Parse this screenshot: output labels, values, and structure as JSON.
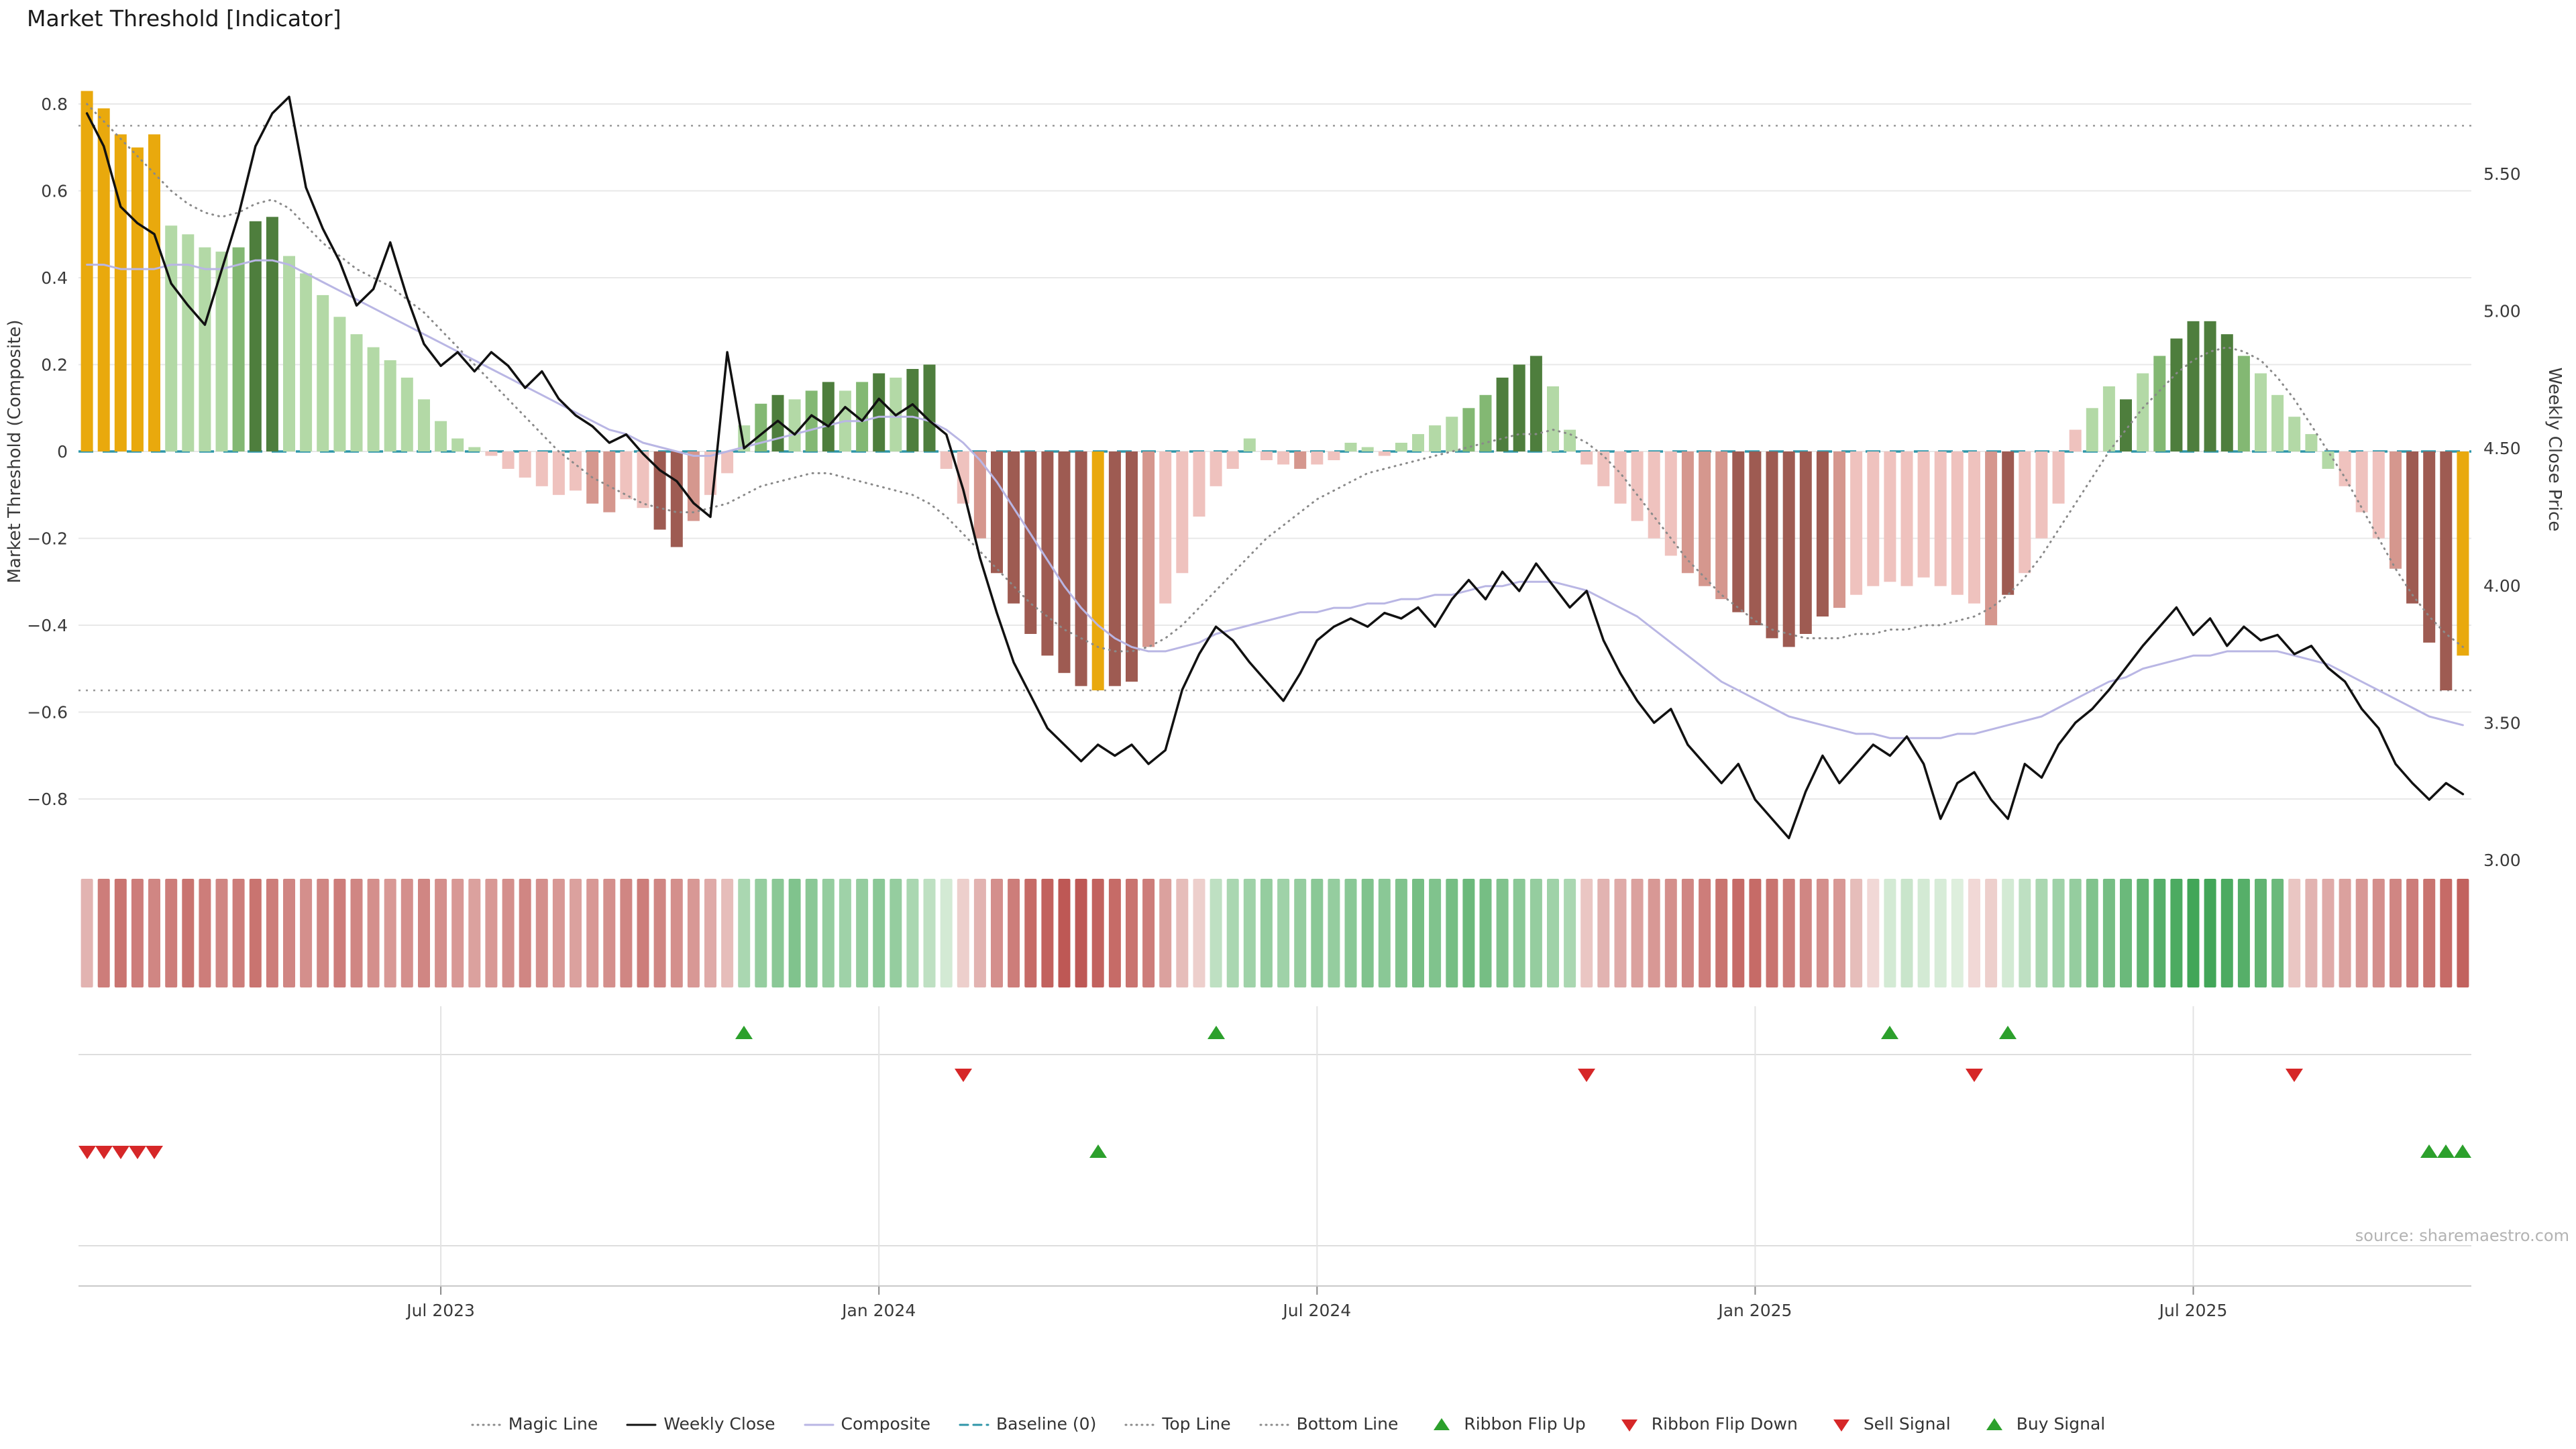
{
  "title": "Market Threshold [Indicator]",
  "source": "source: sharemaestro.com",
  "axes": {
    "left": {
      "title": "Market Threshold (Composite)",
      "tick_values": [
        0.8,
        0.6,
        0.4,
        0.2,
        0,
        -0.2,
        -0.4,
        -0.6,
        -0.8
      ],
      "tick_labels": [
        "0.8",
        "0.6",
        "0.4",
        "0.2",
        "0",
        "−0.2",
        "−0.4",
        "−0.6",
        "−0.8"
      ]
    },
    "right": {
      "title": "Weekly Close Price",
      "tick_values": [
        5.5,
        5.0,
        4.5,
        4.0,
        3.5,
        3.0
      ],
      "tick_labels": [
        "5.50",
        "5.00",
        "4.50",
        "4.00",
        "3.50",
        "3.00"
      ]
    },
    "x": {
      "tick_labels": [
        "Jul 2023",
        "Jan 2024",
        "Jul 2024",
        "Jan 2025",
        "Jul 2025"
      ],
      "tick_weeks": [
        21,
        47,
        73,
        99,
        125
      ]
    }
  },
  "chart_data": {
    "type": "bar",
    "subtype": "combo-bar-line-heatmap",
    "n_weeks": 142,
    "x_range": [
      "Feb 2023",
      "Nov 2025"
    ],
    "ylim_left": [
      -0.94,
      0.89
    ],
    "ylim_right": [
      3.0,
      5.9
    ],
    "bars": {
      "name": "Market Threshold (Composite)",
      "values": [
        0.83,
        0.79,
        0.73,
        0.7,
        0.73,
        0.52,
        0.5,
        0.47,
        0.46,
        0.47,
        0.53,
        0.54,
        0.45,
        0.41,
        0.36,
        0.31,
        0.27,
        0.24,
        0.21,
        0.17,
        0.12,
        0.07,
        0.03,
        0.01,
        -0.01,
        -0.04,
        -0.06,
        -0.08,
        -0.1,
        -0.09,
        -0.12,
        -0.14,
        -0.11,
        -0.13,
        -0.18,
        -0.22,
        -0.16,
        -0.1,
        -0.05,
        0.06,
        0.11,
        0.13,
        0.12,
        0.14,
        0.16,
        0.14,
        0.16,
        0.18,
        0.17,
        0.19,
        0.2,
        -0.04,
        -0.12,
        -0.2,
        -0.28,
        -0.35,
        -0.42,
        -0.47,
        -0.51,
        -0.54,
        -0.55,
        -0.54,
        -0.53,
        -0.45,
        -0.35,
        -0.28,
        -0.15,
        -0.08,
        -0.04,
        0.03,
        -0.02,
        -0.03,
        -0.04,
        -0.03,
        -0.02,
        0.02,
        0.01,
        -0.01,
        0.02,
        0.04,
        0.06,
        0.08,
        0.1,
        0.13,
        0.17,
        0.2,
        0.22,
        0.15,
        0.05,
        -0.03,
        -0.08,
        -0.12,
        -0.16,
        -0.2,
        -0.24,
        -0.28,
        -0.31,
        -0.34,
        -0.37,
        -0.4,
        -0.43,
        -0.45,
        -0.42,
        -0.38,
        -0.36,
        -0.33,
        -0.31,
        -0.3,
        -0.31,
        -0.29,
        -0.31,
        -0.33,
        -0.35,
        -0.4,
        -0.33,
        -0.28,
        -0.2,
        -0.12,
        0.05,
        0.1,
        0.15,
        0.12,
        0.18,
        0.22,
        0.26,
        0.3,
        0.3,
        0.27,
        0.22,
        0.18,
        0.13,
        0.08,
        0.04,
        -0.04,
        -0.08,
        -0.14,
        -0.2,
        -0.27,
        -0.35,
        -0.44,
        -0.55,
        -0.47
      ],
      "color_codes": "GGGGGaaaabccaaaaaaaaaaaappppppqqpprrqppabcabcabcaccppqrrrrrrGrrqpppppappqppaapaaaabbcccaappppppqqqrrrrrrqppppppppqrppppaacabccccbaaaaapppqrrrGG"
    },
    "series": [
      {
        "name": "Weekly Close",
        "axis": "right",
        "style": "solid",
        "color": "#111111",
        "values": [
          5.72,
          5.6,
          5.38,
          5.32,
          5.28,
          5.1,
          5.02,
          4.95,
          5.15,
          5.35,
          5.6,
          5.72,
          5.78,
          5.45,
          5.3,
          5.18,
          5.02,
          5.08,
          5.25,
          5.05,
          4.88,
          4.8,
          4.85,
          4.78,
          4.85,
          4.8,
          4.72,
          4.78,
          4.68,
          4.62,
          4.58,
          4.52,
          4.55,
          4.48,
          4.42,
          4.38,
          4.3,
          4.25,
          4.85,
          4.5,
          4.55,
          4.6,
          4.55,
          4.62,
          4.58,
          4.65,
          4.6,
          4.68,
          4.62,
          4.66,
          4.6,
          4.55,
          4.35,
          4.1,
          3.9,
          3.72,
          3.6,
          3.48,
          3.42,
          3.36,
          3.42,
          3.38,
          3.42,
          3.35,
          3.4,
          3.62,
          3.75,
          3.85,
          3.8,
          3.72,
          3.65,
          3.58,
          3.68,
          3.8,
          3.85,
          3.88,
          3.85,
          3.9,
          3.88,
          3.92,
          3.85,
          3.95,
          4.02,
          3.95,
          4.05,
          3.98,
          4.08,
          4.0,
          3.92,
          3.98,
          3.8,
          3.68,
          3.58,
          3.5,
          3.55,
          3.42,
          3.35,
          3.28,
          3.35,
          3.22,
          3.15,
          3.08,
          3.25,
          3.38,
          3.28,
          3.35,
          3.42,
          3.38,
          3.45,
          3.35,
          3.15,
          3.28,
          3.32,
          3.22,
          3.15,
          3.35,
          3.3,
          3.42,
          3.5,
          3.55,
          3.62,
          3.7,
          3.78,
          3.85,
          3.92,
          3.82,
          3.88,
          3.78,
          3.85,
          3.8,
          3.82,
          3.75,
          3.78,
          3.7,
          3.65,
          3.55,
          3.48,
          3.35,
          3.28,
          3.22,
          3.28,
          3.24
        ]
      },
      {
        "name": "Composite",
        "axis": "left",
        "style": "solid",
        "color": "#b9b6e4",
        "values": [
          0.43,
          0.43,
          0.42,
          0.42,
          0.42,
          0.43,
          0.43,
          0.42,
          0.42,
          0.43,
          0.44,
          0.44,
          0.43,
          0.41,
          0.39,
          0.37,
          0.35,
          0.33,
          0.31,
          0.29,
          0.27,
          0.25,
          0.23,
          0.21,
          0.19,
          0.17,
          0.15,
          0.13,
          0.11,
          0.09,
          0.07,
          0.05,
          0.04,
          0.02,
          0.01,
          0.0,
          -0.01,
          -0.01,
          0.0,
          0.01,
          0.02,
          0.03,
          0.04,
          0.05,
          0.06,
          0.07,
          0.07,
          0.08,
          0.08,
          0.08,
          0.07,
          0.05,
          0.02,
          -0.02,
          -0.07,
          -0.13,
          -0.19,
          -0.25,
          -0.31,
          -0.36,
          -0.4,
          -0.43,
          -0.45,
          -0.46,
          -0.46,
          -0.45,
          -0.44,
          -0.42,
          -0.41,
          -0.4,
          -0.39,
          -0.38,
          -0.37,
          -0.37,
          -0.36,
          -0.36,
          -0.35,
          -0.35,
          -0.34,
          -0.34,
          -0.33,
          -0.33,
          -0.32,
          -0.31,
          -0.31,
          -0.3,
          -0.3,
          -0.3,
          -0.31,
          -0.32,
          -0.34,
          -0.36,
          -0.38,
          -0.41,
          -0.44,
          -0.47,
          -0.5,
          -0.53,
          -0.55,
          -0.57,
          -0.59,
          -0.61,
          -0.62,
          -0.63,
          -0.64,
          -0.65,
          -0.65,
          -0.66,
          -0.66,
          -0.66,
          -0.66,
          -0.65,
          -0.65,
          -0.64,
          -0.63,
          -0.62,
          -0.61,
          -0.59,
          -0.57,
          -0.55,
          -0.53,
          -0.52,
          -0.5,
          -0.49,
          -0.48,
          -0.47,
          -0.47,
          -0.46,
          -0.46,
          -0.46,
          -0.46,
          -0.47,
          -0.48,
          -0.49,
          -0.51,
          -0.53,
          -0.55,
          -0.57,
          -0.59,
          -0.61,
          -0.62,
          -0.63
        ]
      },
      {
        "name": "Magic Line",
        "axis": "left",
        "style": "dotted",
        "color": "#8a8a8a",
        "values": [
          0.8,
          0.76,
          0.72,
          0.68,
          0.64,
          0.6,
          0.57,
          0.55,
          0.54,
          0.55,
          0.57,
          0.58,
          0.56,
          0.52,
          0.48,
          0.45,
          0.42,
          0.4,
          0.38,
          0.35,
          0.32,
          0.28,
          0.24,
          0.2,
          0.16,
          0.12,
          0.08,
          0.04,
          0.0,
          -0.03,
          -0.06,
          -0.08,
          -0.1,
          -0.12,
          -0.13,
          -0.14,
          -0.14,
          -0.13,
          -0.12,
          -0.1,
          -0.08,
          -0.07,
          -0.06,
          -0.05,
          -0.05,
          -0.06,
          -0.07,
          -0.08,
          -0.09,
          -0.1,
          -0.12,
          -0.15,
          -0.19,
          -0.23,
          -0.27,
          -0.31,
          -0.35,
          -0.38,
          -0.41,
          -0.43,
          -0.45,
          -0.46,
          -0.46,
          -0.45,
          -0.43,
          -0.4,
          -0.36,
          -0.32,
          -0.28,
          -0.24,
          -0.2,
          -0.17,
          -0.14,
          -0.11,
          -0.09,
          -0.07,
          -0.05,
          -0.04,
          -0.03,
          -0.02,
          -0.01,
          0.0,
          0.01,
          0.02,
          0.03,
          0.04,
          0.04,
          0.05,
          0.04,
          0.02,
          -0.01,
          -0.05,
          -0.1,
          -0.15,
          -0.2,
          -0.25,
          -0.29,
          -0.33,
          -0.36,
          -0.39,
          -0.41,
          -0.42,
          -0.43,
          -0.43,
          -0.43,
          -0.42,
          -0.42,
          -0.41,
          -0.41,
          -0.4,
          -0.4,
          -0.39,
          -0.38,
          -0.36,
          -0.33,
          -0.29,
          -0.24,
          -0.18,
          -0.12,
          -0.06,
          0.0,
          0.05,
          0.1,
          0.14,
          0.18,
          0.21,
          0.23,
          0.24,
          0.23,
          0.21,
          0.17,
          0.12,
          0.06,
          0.0,
          -0.06,
          -0.13,
          -0.2,
          -0.27,
          -0.33,
          -0.38,
          -0.42,
          -0.45
        ]
      }
    ],
    "ref_lines": [
      {
        "name": "Baseline (0)",
        "value": 0,
        "style": "dashed",
        "color": "#2f96a8"
      },
      {
        "name": "Top Line",
        "value": 0.75,
        "style": "dotted",
        "color": "#999999"
      },
      {
        "name": "Bottom Line",
        "value": -0.55,
        "style": "dotted",
        "color": "#999999"
      }
    ],
    "ribbon": {
      "name": "Trend Ribbon",
      "values": [
        -0.3,
        -0.6,
        -0.65,
        -0.6,
        -0.55,
        -0.6,
        -0.65,
        -0.6,
        -0.55,
        -0.6,
        -0.65,
        -0.6,
        -0.55,
        -0.5,
        -0.55,
        -0.6,
        -0.55,
        -0.5,
        -0.45,
        -0.5,
        -0.55,
        -0.5,
        -0.45,
        -0.4,
        -0.45,
        -0.5,
        -0.55,
        -0.5,
        -0.45,
        -0.4,
        -0.45,
        -0.5,
        -0.55,
        -0.6,
        -0.55,
        -0.5,
        -0.45,
        -0.35,
        -0.25,
        0.3,
        0.4,
        0.45,
        0.5,
        0.45,
        0.4,
        0.35,
        0.4,
        0.45,
        0.4,
        0.3,
        0.2,
        0.1,
        -0.15,
        -0.3,
        -0.5,
        -0.6,
        -0.7,
        -0.75,
        -0.8,
        -0.8,
        -0.75,
        -0.7,
        -0.65,
        -0.6,
        -0.4,
        -0.25,
        -0.15,
        0.2,
        0.3,
        0.35,
        0.4,
        0.35,
        0.4,
        0.45,
        0.4,
        0.45,
        0.5,
        0.45,
        0.5,
        0.55,
        0.5,
        0.55,
        0.6,
        0.55,
        0.5,
        0.45,
        0.4,
        0.35,
        0.3,
        -0.2,
        -0.3,
        -0.35,
        -0.4,
        -0.45,
        -0.5,
        -0.55,
        -0.6,
        -0.65,
        -0.7,
        -0.7,
        -0.65,
        -0.6,
        -0.55,
        -0.5,
        -0.45,
        -0.25,
        -0.1,
        0.1,
        0.15,
        0.1,
        0.08,
        0.05,
        -0.1,
        -0.15,
        0.1,
        0.2,
        0.3,
        0.35,
        0.4,
        0.5,
        0.55,
        0.6,
        0.65,
        0.7,
        0.75,
        0.8,
        0.8,
        0.75,
        0.7,
        0.65,
        0.6,
        -0.2,
        -0.3,
        -0.35,
        -0.4,
        -0.45,
        -0.5,
        -0.55,
        -0.6,
        -0.65,
        -0.7,
        -0.75
      ]
    },
    "signals": {
      "ribbon_flip_up_weeks": [
        39,
        67,
        107,
        114
      ],
      "ribbon_flip_down_weeks": [
        52,
        89,
        112,
        131
      ],
      "sell_weeks": [
        0,
        1,
        2,
        3,
        4
      ],
      "buy_weeks": [
        60,
        139,
        140,
        141
      ]
    }
  },
  "legend": {
    "items": [
      {
        "label": "Magic Line",
        "marker": "dotted",
        "color": "#8a8a8a"
      },
      {
        "label": "Weekly Close",
        "marker": "solid",
        "color": "#111111"
      },
      {
        "label": "Composite",
        "marker": "solid",
        "color": "#b9b6e4"
      },
      {
        "label": "Baseline (0)",
        "marker": "dashed",
        "color": "#2f96a8"
      },
      {
        "label": "Top Line",
        "marker": "dotted",
        "color": "#8a8a8a"
      },
      {
        "label": "Bottom Line",
        "marker": "dotted",
        "color": "#8a8a8a"
      },
      {
        "label": "Ribbon Flip Up",
        "marker": "triangle-up",
        "color": "#2ca02c"
      },
      {
        "label": "Ribbon Flip Down",
        "marker": "triangle-down",
        "color": "#d62728"
      },
      {
        "label": "Sell Signal",
        "marker": "triangle-down",
        "color": "#d62728"
      },
      {
        "label": "Buy Signal",
        "marker": "triangle-up",
        "color": "#2ca02c"
      }
    ]
  },
  "palette": {
    "bar": {
      "G": "#e9a90d",
      "a": "#b3d9a6",
      "b": "#83b873",
      "c": "#4e7e3d",
      "p": "#efc2be",
      "q": "#d5978e",
      "r": "#9e5b52"
    },
    "signal_up": "#2ca02c",
    "signal_down": "#d62728",
    "grid": "#e8e8e8",
    "ribbon_neg_dark": [
      176,
      52,
      48
    ],
    "ribbon_neg_light": [
      248,
      234,
      232
    ],
    "ribbon_pos_dark": [
      24,
      146,
      52
    ],
    "ribbon_pos_light": [
      232,
      244,
      230
    ]
  }
}
